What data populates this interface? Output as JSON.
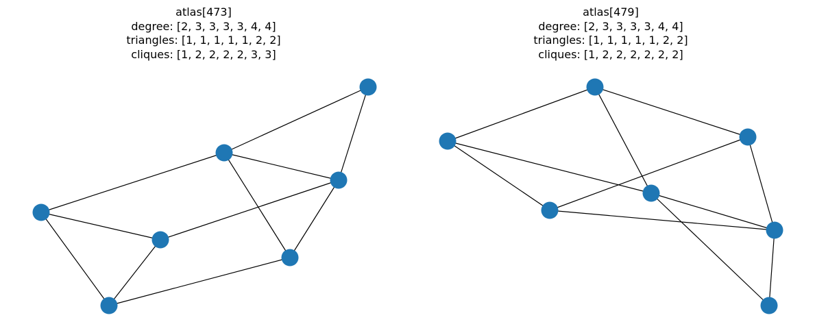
{
  "colors": {
    "node": "#1f77b4",
    "edge": "#000000",
    "background": "#ffffff"
  },
  "panels": [
    {
      "title": "atlas[473]",
      "degree": "degree: [2, 3, 3, 3, 3, 4, 4]",
      "triangles": "triangles: [1, 1, 1, 1, 1, 2, 2]",
      "cliques": "cliques: [1, 2, 2, 2, 2, 3, 3]"
    },
    {
      "title": "atlas[479]",
      "degree": "degree: [2, 3, 3, 3, 3, 4, 4]",
      "triangles": "triangles: [1, 1, 1, 1, 1, 2, 2]",
      "cliques": "cliques: [1, 2, 2, 2, 2, 2, 2]"
    }
  ]
}
